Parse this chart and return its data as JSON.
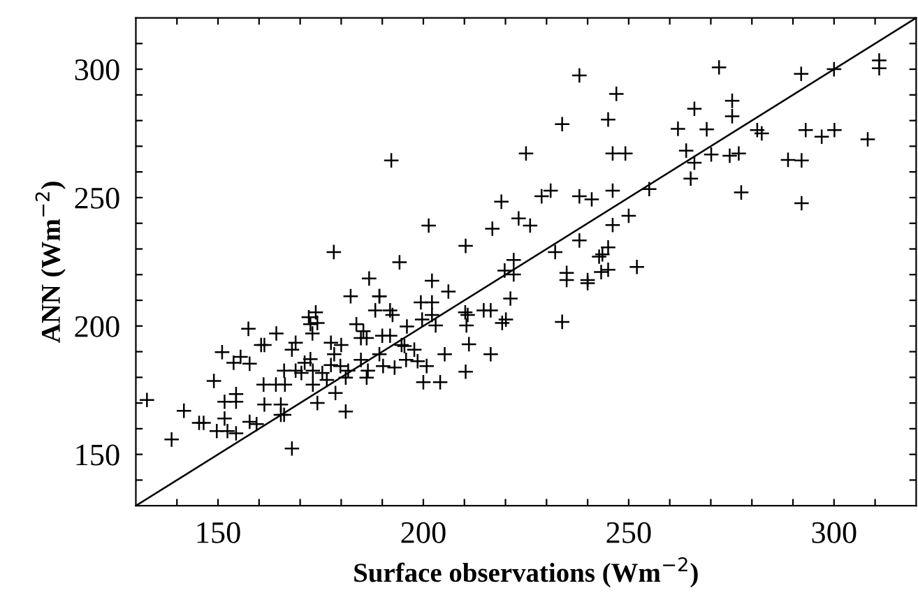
{
  "chart_data": {
    "type": "scatter",
    "xlabel": "Surface observations (Wm$^{−2}$)",
    "ylabel": "ANN (Wm$^{−2}$)",
    "xlim": [
      130,
      320
    ],
    "ylim": [
      130,
      320
    ],
    "xticks": [
      {
        "value": 140,
        "label": null
      },
      150,
      {
        "value": 160,
        "label": null
      },
      {
        "value": 170,
        "label": null
      },
      {
        "value": 180,
        "label": null
      },
      {
        "value": 190,
        "label": null
      },
      200,
      {
        "value": 210,
        "label": null
      },
      {
        "value": 220,
        "label": null
      },
      {
        "value": 230,
        "label": null
      },
      {
        "value": 240,
        "label": null
      },
      250,
      {
        "value": 260,
        "label": null
      },
      {
        "value": 270,
        "label": null
      },
      {
        "value": 280,
        "label": null
      },
      {
        "value": 290,
        "label": null
      },
      300,
      {
        "value": 310,
        "label": null
      }
    ],
    "yticks": [
      {
        "value": 140,
        "label": null
      },
      150,
      {
        "value": 160,
        "label": null
      },
      {
        "value": 170,
        "label": null
      },
      {
        "value": 180,
        "label": null
      },
      {
        "value": 190,
        "label": null
      },
      200,
      {
        "value": 210,
        "label": null
      },
      {
        "value": 220,
        "label": null
      },
      {
        "value": 230,
        "label": null
      },
      {
        "value": 240,
        "label": null
      },
      250,
      {
        "value": 260,
        "label": null
      },
      {
        "value": 270,
        "label": null
      },
      {
        "value": 280,
        "label": null
      },
      {
        "value": 290,
        "label": null
      },
      300,
      {
        "value": 310,
        "label": null
      }
    ],
    "marker": "cross",
    "grid": false,
    "legend": false,
    "series": [
      {
        "color": "#000000",
        "x": [
          192.2,
          178.2,
          201.3,
          210.3,
          216.8,
          194.2,
          186.8,
          182.3,
          189.3,
          202.1,
          132.7,
          138.7,
          141.7,
          145.4,
          146.5,
          149,
          151,
          149.7,
          152.3,
          154.4,
          151.6,
          154.4,
          154.4,
          151.6,
          153.8,
          155.5,
          157.7,
          157.4,
          157.7,
          159.4,
          160.5,
          161.3,
          164.2,
          161.1,
          164.1,
          166.3,
          161.3,
          165.3,
          165.3,
          166.1,
          168,
          166.1,
          168.9,
          168.9,
          168,
          171.1,
          172.5,
          172.1,
          173.8,
          172.5,
          174.2,
          173,
          170.3,
          173.1,
          175.4,
          176.5,
          173.1,
          174.2,
          177.5,
          180,
          178.3,
          177.5,
          179.8,
          181.7,
          178.6,
          181.1,
          181.1,
          183.7,
          185.4,
          186.2,
          184.8,
          184.8,
          186.5,
          186.2,
          188.3,
          189.3,
          191.9,
          192.5,
          190,
          191.9,
          189.3,
          190.2,
          193,
          194.7,
          195.4,
          196,
          197.8,
          195.8,
          198.6,
          199.4,
          202.1,
          199.7,
          202.1,
          203,
          200.8,
          200,
          204.1,
          205.2,
          206.1,
          210.2,
          210.8,
          210.5,
          211.1,
          210.3,
          214.7,
          216.4,
          216.4,
          219.2,
          220.1,
          221.2,
          233.8,
          238,
          272,
          292,
          300,
          311,
          311,
          247,
          233.8,
          245,
          266,
          275.2,
          275.2,
          262,
          269,
          281.3,
          282.4,
          293.1,
          297,
          300.1,
          308.2,
          225,
          246.1,
          249.2,
          264,
          266,
          270.1,
          274.6,
          276.8,
          288.8,
          292.1,
          265.1,
          277.4,
          292.1,
          219,
          228.8,
          231,
          238,
          241,
          246.1,
          255,
          223.2,
          226,
          238,
          246.1,
          250,
          232.1,
          222,
          219.8,
          222,
          234.9,
          234.9,
          240,
          240,
          242.8,
          243.6,
          245,
          243.3,
          245,
          252
        ],
        "values": [
          264.5,
          228.8,
          239.1,
          231.2,
          237.9,
          224.8,
          218.5,
          211.6,
          211.6,
          217.6,
          171.2,
          155.8,
          167.0,
          162.3,
          162.3,
          178.6,
          189.8,
          159.1,
          159.1,
          158.2,
          170.5,
          170.5,
          173.5,
          164,
          185.7,
          188,
          185.3,
          198.9,
          162.7,
          161.8,
          192.6,
          192.6,
          197.1,
          177.2,
          177.2,
          177.2,
          169.4,
          169.4,
          165.4,
          165.4,
          152.3,
          182.6,
          182.6,
          193.5,
          190.8,
          185.7,
          187.1,
          203.4,
          205.3,
          200.7,
          201.2,
          197.1,
          181.7,
          182.6,
          181.7,
          179,
          177.2,
          170,
          193.5,
          192.6,
          189,
          184.8,
          184.4,
          182.6,
          173.9,
          179.9,
          166.7,
          200.7,
          198,
          195.3,
          195.3,
          186.8,
          182.6,
          179.9,
          206.1,
          211.6,
          206.1,
          204.3,
          196.2,
          196.2,
          189,
          184.4,
          183.8,
          192.6,
          192.2,
          199.8,
          190.8,
          186.8,
          186.3,
          209.2,
          209.2,
          202.5,
          204.3,
          200.2,
          184.4,
          178.1,
          178.1,
          189,
          213.4,
          205.3,
          204.3,
          200.2,
          192.9,
          182.2,
          206.1,
          206.1,
          189,
          201.2,
          202.5,
          210.7,
          201.6,
          297.6,
          300.7,
          298.2,
          300,
          303.4,
          300.4,
          290.4,
          278.6,
          280.4,
          284.6,
          287.7,
          281.7,
          276.8,
          276.6,
          276.3,
          275,
          276.3,
          273.7,
          276.3,
          272.7,
          267.2,
          267.2,
          267.2,
          268.3,
          263.6,
          266.8,
          266.3,
          267.2,
          264.7,
          264.5,
          257.4,
          252,
          247.8,
          248.4,
          250.5,
          252.7,
          250.5,
          249.3,
          252.7,
          253.3,
          241.9,
          239.1,
          233.3,
          239.3,
          242.9,
          228.8,
          225.7,
          221.6,
          220.1,
          220.7,
          217.9,
          217.9,
          216.7,
          227,
          227.9,
          230.6,
          221,
          221.9,
          223
        ]
      },
      {
        "type": "line",
        "color": "#000000",
        "x": [
          130,
          320
        ],
        "values": [
          130,
          320
        ],
        "marker": "none"
      }
    ]
  }
}
